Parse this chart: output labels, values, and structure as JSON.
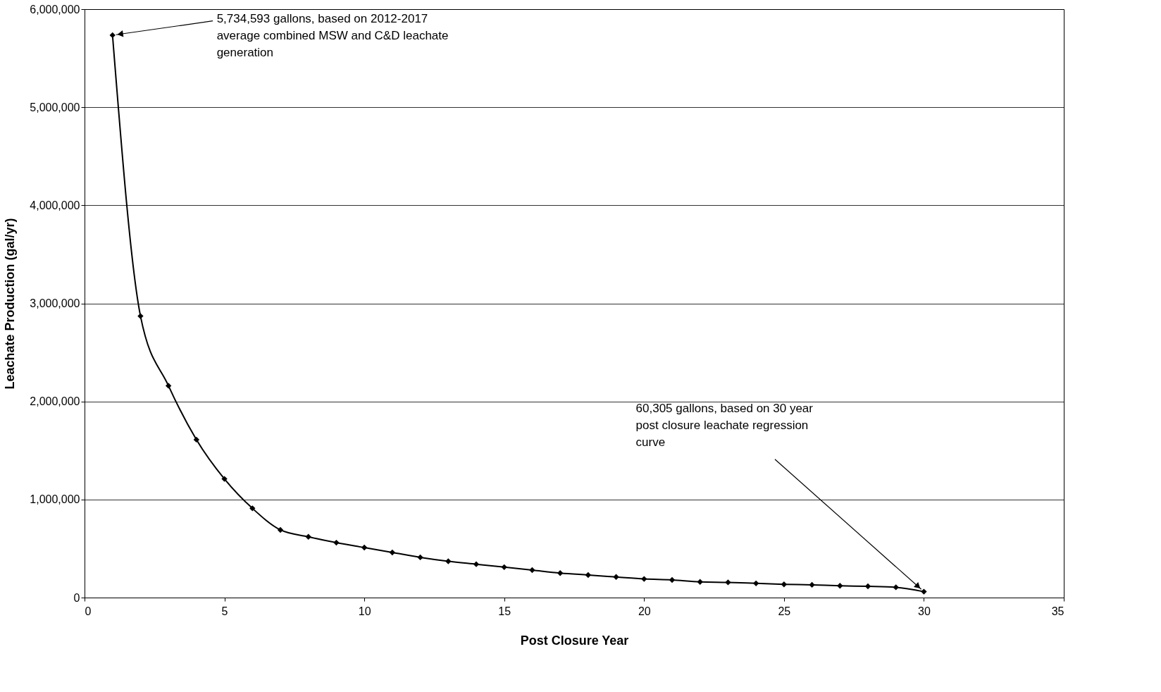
{
  "chart_data": {
    "type": "line",
    "xlabel": "Post Closure Year",
    "ylabel": "Leachate Production (gal/yr)",
    "x": [
      1,
      2,
      3,
      4,
      5,
      6,
      7,
      8,
      9,
      10,
      11,
      12,
      13,
      14,
      15,
      16,
      17,
      18,
      19,
      20,
      21,
      22,
      23,
      24,
      25,
      26,
      27,
      28,
      29,
      30
    ],
    "series": [
      {
        "color": "#000000",
        "values": [
          5734593,
          2870000,
          2160000,
          1610000,
          1210000,
          910000,
          690000,
          620000,
          560000,
          510000,
          460000,
          410000,
          370000,
          340000,
          310000,
          280000,
          250000,
          230000,
          210000,
          190000,
          180000,
          160000,
          155000,
          145000,
          135000,
          130000,
          120000,
          115000,
          105000,
          60305
        ]
      }
    ],
    "xlim": [
      0,
      35
    ],
    "xticks": [
      0,
      5,
      10,
      15,
      20,
      25,
      30,
      35
    ],
    "ylim": [
      0,
      6000000
    ],
    "yticks": [
      0,
      {
        "value": 1000000,
        "label": "1,000,000"
      },
      {
        "value": 2000000,
        "label": "2,000,000"
      },
      {
        "value": 3000000,
        "label": "3,000,000"
      },
      {
        "value": 4000000,
        "label": "4,000,000"
      },
      {
        "value": 5000000,
        "label": "5,000,000"
      },
      {
        "value": 6000000,
        "label": "6,000,000"
      }
    ],
    "grid": "y",
    "marker": "diamond",
    "line_style": "solid",
    "annotations": [
      {
        "text": "5,734,593 gallons, based on 2012-2017\naverage combined MSW and C&D leachate\ngeneration",
        "x": 1,
        "y": 5734593
      },
      {
        "text": "60,305 gallons, based on 30 year\npost closure leachate regression\ncurve",
        "x": 30,
        "y": 60305
      }
    ]
  }
}
